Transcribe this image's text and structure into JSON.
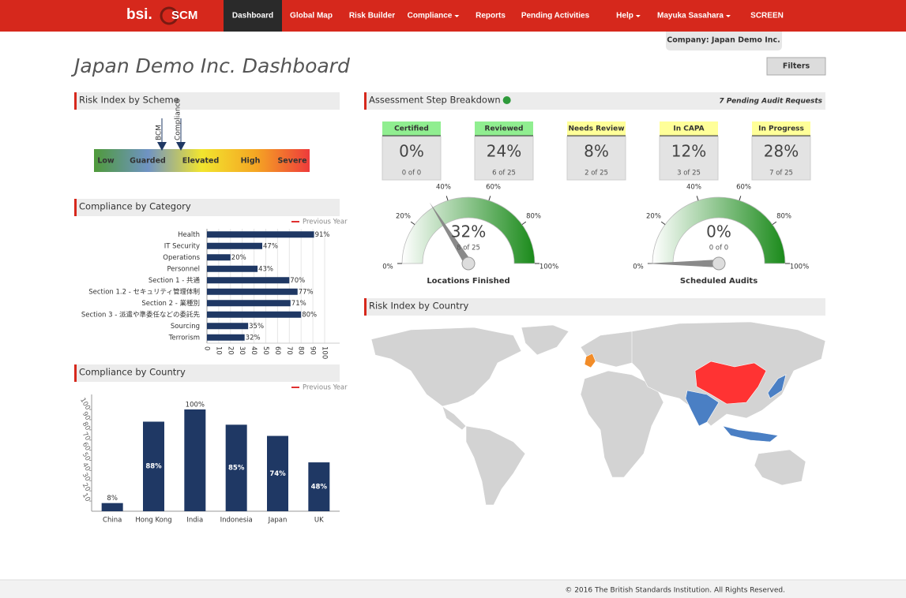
{
  "nav": {
    "logo": "bsi.",
    "product": "SCM",
    "items": [
      {
        "label": "Dashboard",
        "active": true
      },
      {
        "label": "Global Map"
      },
      {
        "label": "Risk Builder"
      },
      {
        "label": "Compliance",
        "dropdown": true
      },
      {
        "label": "Reports"
      },
      {
        "label": "Pending Activities"
      },
      {
        "label": "Help",
        "dropdown": true
      },
      {
        "label": "Mayuka Sasahara",
        "dropdown": true
      },
      {
        "label": "SCREEN"
      }
    ],
    "company": "Company: Japan Demo Inc."
  },
  "header": {
    "title": "Japan Demo Inc. Dashboard",
    "filters": "Filters"
  },
  "risk_scheme": {
    "title": "Risk Index by Scheme",
    "levels": [
      "Low",
      "Guarded",
      "Elevated",
      "High",
      "Severe"
    ],
    "markers": [
      "BCM",
      "Compliance"
    ]
  },
  "compliance_by_category": {
    "type": "bar",
    "orientation": "horizontal",
    "title": "Compliance by Category",
    "legend": "Previous Year",
    "color": "#1f3864",
    "categories": [
      "Health",
      "IT Security",
      "Operations",
      "Personnel",
      "Section 1 - 共通",
      "Section 1.2 - セキュリティ管理体制",
      "Section 2 - 業種別",
      "Section 3 - 派遣や準委任などの委託先",
      "Sourcing",
      "Terrorism"
    ],
    "values": [
      91,
      47,
      20,
      43,
      70,
      77,
      71,
      80,
      35,
      32
    ],
    "value_labels": [
      "91%",
      "47%",
      "20%",
      "43%",
      "70%",
      "77%",
      "71%",
      "80%",
      "35%",
      "32%"
    ],
    "xlim": [
      0,
      100
    ],
    "xticks": [
      0,
      10,
      20,
      30,
      40,
      50,
      60,
      70,
      80,
      90,
      100
    ],
    "grid": true
  },
  "compliance_by_country": {
    "type": "bar",
    "title": "Compliance by Country",
    "legend": "Previous Year",
    "color": "#1f3864",
    "categories": [
      "China",
      "Hong Kong",
      "India",
      "Indonesia",
      "Japan",
      "UK"
    ],
    "values": [
      8,
      88,
      100,
      85,
      74,
      48
    ],
    "value_labels": [
      "8%",
      "88%",
      "100%",
      "85%",
      "74%",
      "48%"
    ],
    "ylim": [
      0,
      100
    ],
    "yticks": [
      10,
      20,
      30,
      40,
      50,
      60,
      70,
      80,
      90,
      100
    ]
  },
  "assessment": {
    "title": "Assessment Step Breakdown",
    "pending": "7 Pending Audit Requests",
    "steps": [
      {
        "name": "Certified",
        "percent": "0%",
        "count": "0 of 0",
        "color": "#90ee90"
      },
      {
        "name": "Reviewed",
        "percent": "24%",
        "count": "6 of 25",
        "color": "#90ee90"
      },
      {
        "name": "Needs Review",
        "percent": "8%",
        "count": "2 of 25",
        "color": "#ffff99"
      },
      {
        "name": "In CAPA",
        "percent": "12%",
        "count": "3 of 25",
        "color": "#ffff99"
      },
      {
        "name": "In Progress",
        "percent": "28%",
        "count": "7 of 25",
        "color": "#ffff99"
      }
    ],
    "gauges": [
      {
        "type": "gauge",
        "value": 32,
        "value_label": "32%",
        "count": "8 of 25",
        "caption": "Locations Finished",
        "color": "#1a8a1a",
        "lim": [
          0,
          100
        ],
        "ticks": [
          {
            "value": 0,
            "label": "0%"
          },
          {
            "value": 20,
            "label": "20%"
          },
          {
            "value": 40,
            "label": "40%"
          },
          {
            "value": 60,
            "label": "60%"
          },
          {
            "value": 80,
            "label": "80%"
          },
          {
            "value": 100,
            "label": "100%"
          }
        ]
      },
      {
        "type": "gauge",
        "value": 0,
        "value_label": "0%",
        "count": "0 of 0",
        "caption": "Scheduled Audits",
        "color": "#1a8a1a",
        "lim": [
          0,
          100
        ],
        "ticks": [
          {
            "value": 0,
            "label": "0%"
          },
          {
            "value": 20,
            "label": "20%"
          },
          {
            "value": 40,
            "label": "40%"
          },
          {
            "value": 60,
            "label": "60%"
          },
          {
            "value": 80,
            "label": "80%"
          },
          {
            "value": 100,
            "label": "100%"
          }
        ]
      }
    ]
  },
  "risk_map": {
    "title": "Risk Index by Country"
  },
  "footer": {
    "text": "© 2016 The British Standards Institution. All Rights Reserved."
  }
}
